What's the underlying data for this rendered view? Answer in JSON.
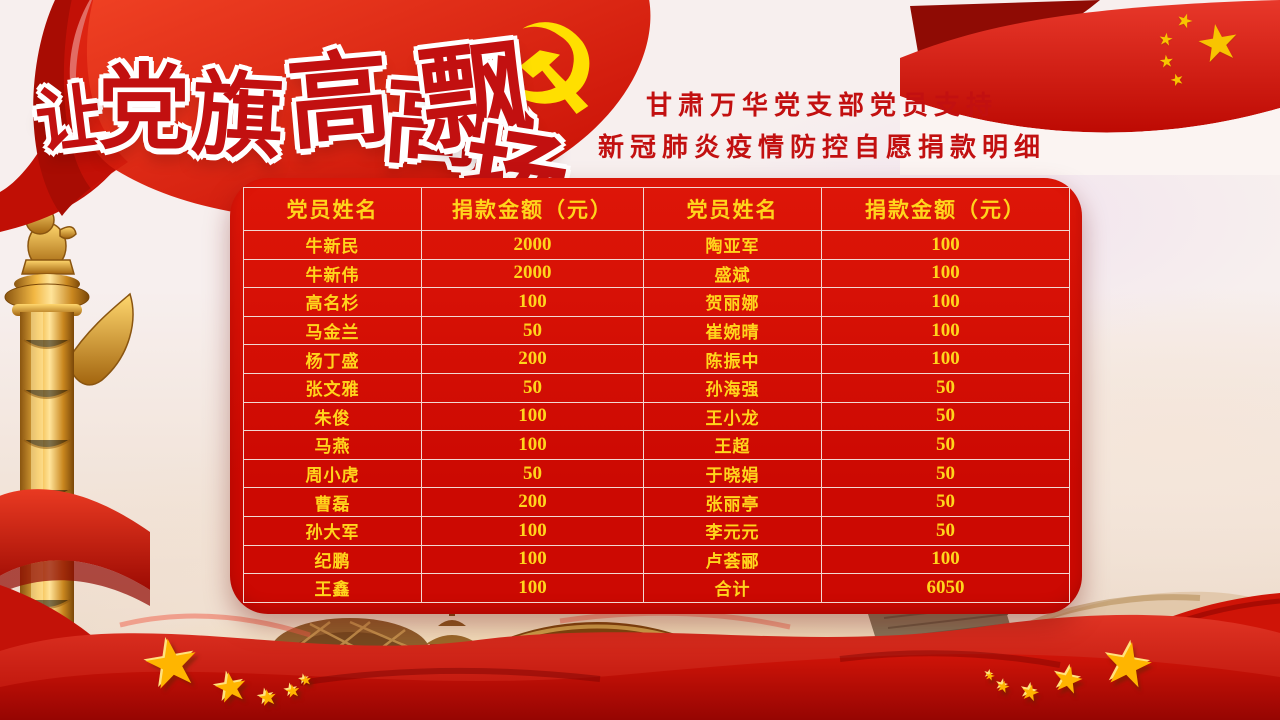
{
  "banner": {
    "full_text": "让党旗高高飘扬",
    "calligraphy_chars": [
      "让",
      "党",
      "旗",
      "高",
      "高",
      "飘",
      "扬"
    ]
  },
  "subtitle": {
    "line1": "甘肃万华党支部党员支持",
    "line2": "新冠肺炎疫情防控自愿捐款明细"
  },
  "icons": {
    "party_emblem": "☭",
    "star": "★"
  },
  "donation_table": {
    "headers": [
      "党员姓名",
      "捐款金额（元）",
      "党员姓名",
      "捐款金额（元）"
    ],
    "rows": [
      [
        "牛新民",
        "2000",
        "陶亚军",
        "100"
      ],
      [
        "牛新伟",
        "2000",
        "盛斌",
        "100"
      ],
      [
        "高名杉",
        "100",
        "贺丽娜",
        "100"
      ],
      [
        "马金兰",
        "50",
        "崔婉晴",
        "100"
      ],
      [
        "杨丁盛",
        "200",
        "陈振中",
        "100"
      ],
      [
        "张文雅",
        "50",
        "孙海强",
        "50"
      ],
      [
        "朱俊",
        "100",
        "王小龙",
        "50"
      ],
      [
        "马燕",
        "100",
        "王超",
        "50"
      ],
      [
        "周小虎",
        "50",
        "于晓娟",
        "50"
      ],
      [
        "曹磊",
        "200",
        "张丽亭",
        "50"
      ],
      [
        "孙大军",
        "100",
        "李元元",
        "50"
      ],
      [
        "纪鹏",
        "100",
        "卢荟郦",
        "100"
      ],
      [
        "王鑫",
        "100",
        "合计",
        "6050"
      ]
    ],
    "total_label": "合计",
    "total_value": "6050"
  },
  "colors": {
    "table_red": "#cc0902",
    "gold": "#ffd51c",
    "title_red": "#c21010",
    "flag_red": "#e23322",
    "star_gold": "#ffb500"
  }
}
